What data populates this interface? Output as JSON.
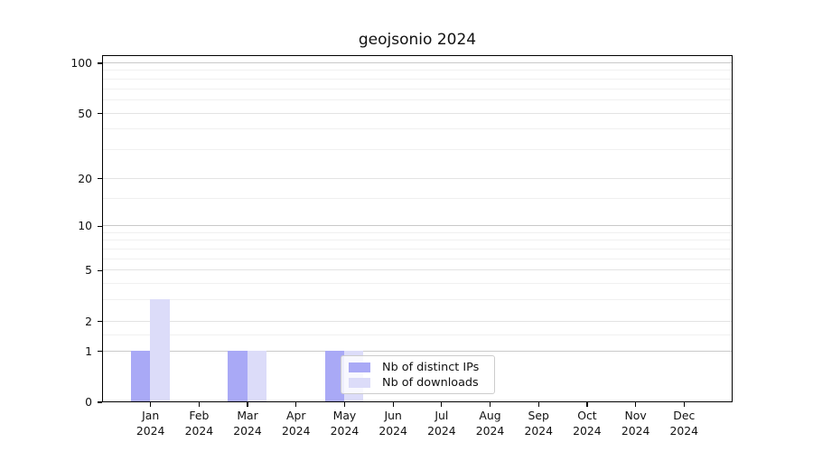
{
  "chart_data": {
    "type": "bar",
    "title": "geojsonio 2024",
    "months": [
      "Jan",
      "Feb",
      "Mar",
      "Apr",
      "May",
      "Jun",
      "Jul",
      "Aug",
      "Sep",
      "Oct",
      "Nov",
      "Dec"
    ],
    "year_label": "2024",
    "series": [
      {
        "name": "Nb of distinct IPs",
        "color": "#a9a9f6",
        "values": [
          1,
          0,
          1,
          0,
          1,
          0,
          0,
          0,
          0,
          0,
          0,
          0
        ]
      },
      {
        "name": "Nb of downloads",
        "color": "#dcdcf9",
        "values": [
          3,
          0,
          1,
          0,
          1,
          0,
          0,
          0,
          0,
          0,
          0,
          0
        ]
      }
    ],
    "y_ticks": [
      0,
      1,
      2,
      5,
      10,
      20,
      50,
      100
    ],
    "y_scale": "log10(1+value)",
    "ylim": [
      0,
      111
    ],
    "major_gridlines": [
      1,
      10,
      100
    ],
    "mid_gridlines": [
      2,
      5,
      20,
      50
    ],
    "minor_gridlines": [
      1.5,
      3,
      4,
      6,
      7,
      8,
      9,
      15,
      30,
      40,
      60,
      70,
      80,
      90
    ],
    "grid": true,
    "legend_position": "inside-lower-center"
  }
}
